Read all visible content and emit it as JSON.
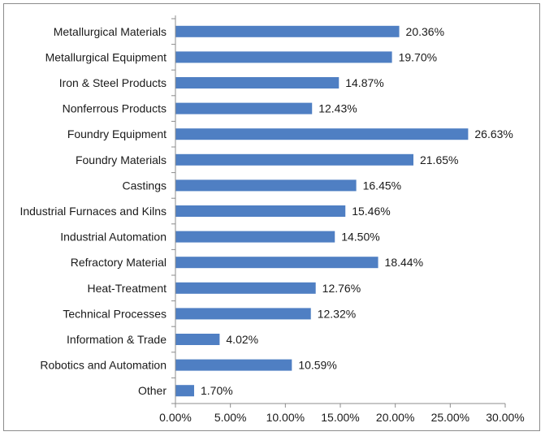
{
  "chart_data": {
    "type": "bar",
    "orientation": "horizontal",
    "categories": [
      "Metallurgical Materials",
      "Metallurgical Equipment",
      "Iron & Steel Products",
      "Nonferrous Products",
      "Foundry Equipment",
      "Foundry Materials",
      "Castings",
      "Industrial Furnaces and Kilns",
      "Industrial Automation",
      "Refractory Material",
      "Heat-Treatment",
      "Technical Processes",
      "Information & Trade",
      "Robotics and Automation",
      "Other"
    ],
    "values": [
      20.36,
      19.7,
      14.87,
      12.43,
      26.63,
      21.65,
      16.45,
      15.46,
      14.5,
      18.44,
      12.76,
      12.32,
      4.02,
      10.59,
      1.7
    ],
    "value_labels": [
      "20.36%",
      "19.70%",
      "14.87%",
      "12.43%",
      "26.63%",
      "21.65%",
      "16.45%",
      "15.46%",
      "14.50%",
      "18.44%",
      "12.76%",
      "12.32%",
      "4.02%",
      "10.59%",
      "1.70%"
    ],
    "xlim": [
      0,
      30
    ],
    "xticks": [
      0,
      5,
      10,
      15,
      20,
      25,
      30
    ],
    "xtick_labels": [
      "0.00%",
      "5.00%",
      "10.00%",
      "15.00%",
      "20.00%",
      "25.00%",
      "30.00%"
    ],
    "title": "",
    "xlabel": "",
    "ylabel": "",
    "grid": false,
    "legend": "none",
    "bar_color": "#4f7fc3"
  }
}
